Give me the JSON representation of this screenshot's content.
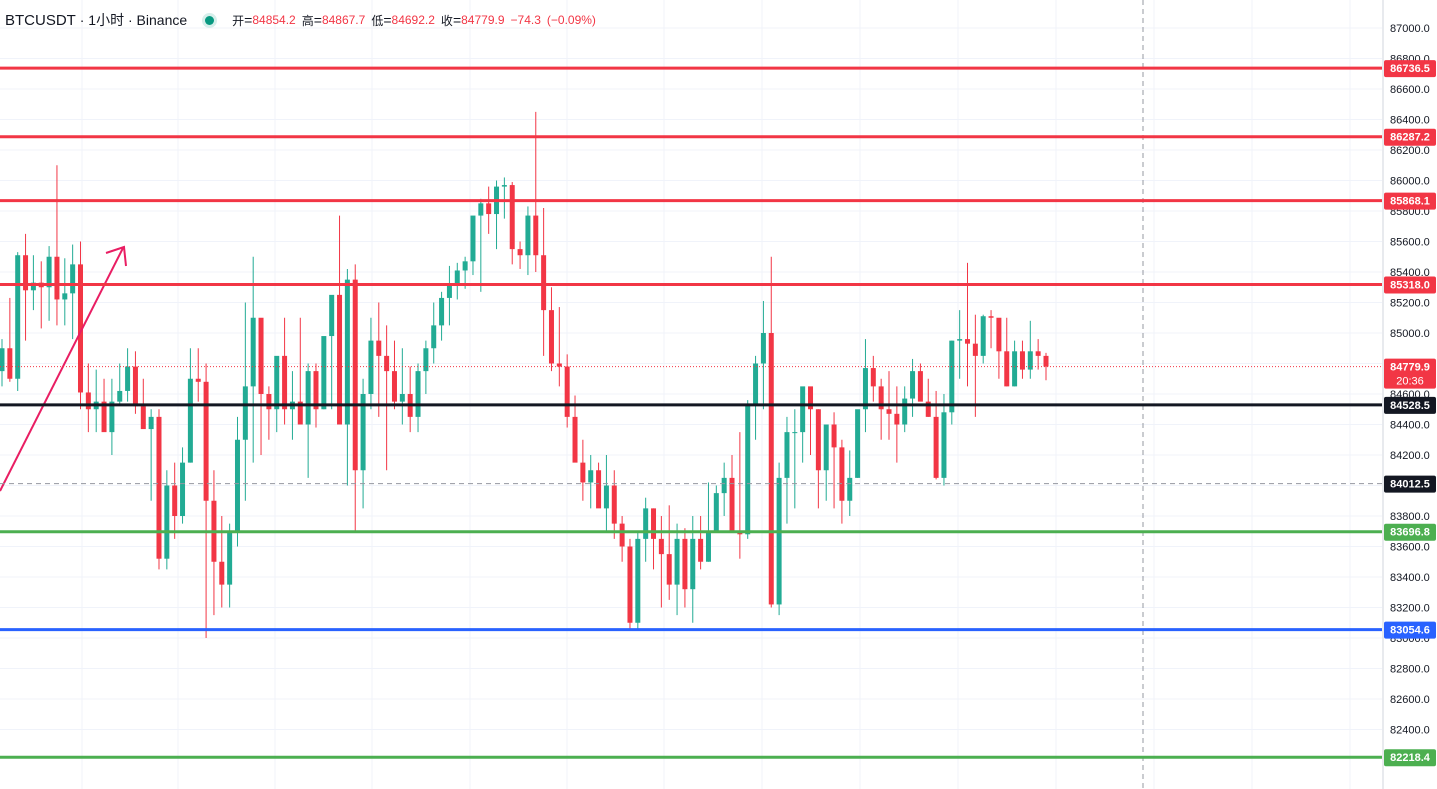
{
  "legend": {
    "symbol": "BTCUSDT",
    "interval": "1小时",
    "exchange": "Binance",
    "open_label": "开",
    "open": "84854.2",
    "high_label": "高",
    "high": "84867.7",
    "low_label": "低",
    "low": "84692.2",
    "close_label": "收",
    "close": "84779.9",
    "change": "−74.3",
    "change_pct": "(−0.09%)"
  },
  "colors": {
    "up": "#22ab94",
    "down": "#f23645",
    "resistance": "#f23645",
    "support": "#4caf50",
    "pivot": "#131722",
    "low_line": "#2962ff",
    "arrow": "#e91e63",
    "grid": "#f0f3fa"
  },
  "chart_data": {
    "type": "candlestick",
    "symbol": "BTCUSDT",
    "timeframe": "1h",
    "ylim": [
      82100,
      87150
    ],
    "y_ticks": [
      82400,
      82600,
      82800,
      83000,
      83200,
      83400,
      83600,
      83800,
      84000,
      84200,
      84400,
      84600,
      84800,
      85000,
      85200,
      85400,
      85600,
      85800,
      86000,
      86200,
      86400,
      86600,
      86800,
      87000
    ],
    "current_price": {
      "value": 84779.9,
      "label": "84779.9",
      "countdown": "20:36"
    },
    "crosshair_price": {
      "value": 84012.5,
      "label": "84012.5"
    },
    "horizontal_lines": [
      {
        "value": 86736.5,
        "label": "86736.5",
        "kind": "resistance"
      },
      {
        "value": 86287.2,
        "label": "86287.2",
        "kind": "resistance"
      },
      {
        "value": 85868.1,
        "label": "85868.1",
        "kind": "resistance"
      },
      {
        "value": 85318.0,
        "label": "85318.0",
        "kind": "resistance"
      },
      {
        "value": 84528.5,
        "label": "84528.5",
        "kind": "pivot"
      },
      {
        "value": 83696.8,
        "label": "83696.8",
        "kind": "support"
      },
      {
        "value": 83054.6,
        "label": "83054.6",
        "kind": "low_line"
      },
      {
        "value": 82218.4,
        "label": "82218.4",
        "kind": "support"
      }
    ],
    "candles_ohlc": [
      [
        84750,
        84960,
        84650,
        84900
      ],
      [
        84900,
        85230,
        84680,
        84700
      ],
      [
        84700,
        85530,
        84620,
        85510
      ],
      [
        85510,
        85650,
        84950,
        85280
      ],
      [
        85280,
        85510,
        85150,
        85330
      ],
      [
        85330,
        85470,
        85030,
        85300
      ],
      [
        85300,
        85570,
        85080,
        85500
      ],
      [
        85500,
        86100,
        85050,
        85220
      ],
      [
        85220,
        85490,
        85050,
        85260
      ],
      [
        85260,
        85580,
        84960,
        85450
      ],
      [
        85450,
        85600,
        84500,
        84610
      ],
      [
        84610,
        84800,
        84350,
        84500
      ],
      [
        84500,
        84760,
        84350,
        84550
      ],
      [
        84550,
        84700,
        84420,
        84350
      ],
      [
        84350,
        84700,
        84200,
        84550
      ],
      [
        84550,
        84800,
        84530,
        84620
      ],
      [
        84620,
        84900,
        84550,
        84780
      ],
      [
        84780,
        84880,
        84470,
        84520
      ],
      [
        84520,
        84700,
        84450,
        84370
      ],
      [
        84370,
        84500,
        83900,
        84450
      ],
      [
        84450,
        84500,
        83450,
        83520
      ],
      [
        83520,
        84100,
        83450,
        84000
      ],
      [
        84000,
        84150,
        83650,
        83800
      ],
      [
        83800,
        84250,
        83750,
        84150
      ],
      [
        84150,
        84900,
        84150,
        84700
      ],
      [
        84700,
        84900,
        84550,
        84680
      ],
      [
        84680,
        84800,
        83000,
        83900
      ],
      [
        83900,
        84100,
        83150,
        83500
      ],
      [
        83500,
        83800,
        83200,
        83350
      ],
      [
        83350,
        83750,
        83200,
        83700
      ],
      [
        83700,
        84450,
        83600,
        84300
      ],
      [
        84300,
        85200,
        83900,
        84650
      ],
      [
        84650,
        85500,
        84150,
        85100
      ],
      [
        85100,
        85050,
        84200,
        84600
      ],
      [
        84600,
        84650,
        84300,
        84500
      ],
      [
        84500,
        84750,
        84350,
        84850
      ],
      [
        84850,
        85100,
        84400,
        84500
      ],
      [
        84500,
        84750,
        84300,
        84550
      ],
      [
        84550,
        85100,
        84500,
        84400
      ],
      [
        84400,
        84800,
        84050,
        84750
      ],
      [
        84750,
        84800,
        84380,
        84500
      ],
      [
        84500,
        84900,
        84500,
        84980
      ],
      [
        84980,
        85000,
        84500,
        85250
      ],
      [
        85250,
        85770,
        84800,
        84400
      ],
      [
        84400,
        85420,
        84000,
        85350
      ],
      [
        85350,
        85450,
        83700,
        84100
      ],
      [
        84100,
        84700,
        83850,
        84600
      ],
      [
        84600,
        85100,
        84500,
        84950
      ],
      [
        84950,
        85200,
        84450,
        84850
      ],
      [
        84850,
        85050,
        84100,
        84750
      ],
      [
        84750,
        84950,
        84500,
        84550
      ],
      [
        84550,
        84900,
        84400,
        84600
      ],
      [
        84600,
        84780,
        84350,
        84450
      ],
      [
        84450,
        84800,
        84350,
        84750
      ],
      [
        84750,
        84950,
        84600,
        84900
      ],
      [
        84900,
        85200,
        84800,
        85050
      ],
      [
        85050,
        85270,
        84950,
        85230
      ],
      [
        85230,
        85440,
        85050,
        85310
      ],
      [
        85310,
        85460,
        85220,
        85410
      ],
      [
        85410,
        85500,
        85290,
        85470
      ],
      [
        85470,
        85720,
        85380,
        85770
      ],
      [
        85770,
        85880,
        85270,
        85850
      ],
      [
        85850,
        85960,
        85650,
        85780
      ],
      [
        85780,
        86000,
        85550,
        85960
      ],
      [
        85960,
        86020,
        85750,
        85970
      ],
      [
        85970,
        85990,
        85450,
        85550
      ],
      [
        85550,
        85600,
        85420,
        85510
      ],
      [
        85510,
        85830,
        85380,
        85770
      ],
      [
        85770,
        86450,
        85400,
        85510
      ],
      [
        85510,
        85820,
        84850,
        85150
      ],
      [
        85150,
        85300,
        84750,
        84800
      ],
      [
        84800,
        85170,
        84650,
        84780
      ],
      [
        84780,
        84860,
        84380,
        84450
      ],
      [
        84450,
        84590,
        84170,
        84150
      ],
      [
        84150,
        84300,
        83900,
        84020
      ],
      [
        84020,
        84200,
        83850,
        84100
      ],
      [
        84100,
        84150,
        83900,
        83850
      ],
      [
        83850,
        84200,
        83700,
        84000
      ],
      [
        84000,
        84100,
        83650,
        83750
      ],
      [
        83750,
        83800,
        83500,
        83600
      ],
      [
        83600,
        83650,
        83050,
        83100
      ],
      [
        83100,
        83700,
        83050,
        83650
      ],
      [
        83650,
        83920,
        83500,
        83850
      ],
      [
        83850,
        83850,
        83450,
        83650
      ],
      [
        83650,
        83800,
        83200,
        83550
      ],
      [
        83550,
        83870,
        83250,
        83350
      ],
      [
        83350,
        83750,
        83150,
        83650
      ],
      [
        83650,
        83720,
        83200,
        83320
      ],
      [
        83320,
        83800,
        83100,
        83650
      ],
      [
        83650,
        83800,
        83450,
        83500
      ],
      [
        83500,
        84020,
        83500,
        83700
      ],
      [
        83700,
        84000,
        83750,
        83950
      ],
      [
        83950,
        84150,
        83800,
        84050
      ],
      [
        84050,
        84200,
        83850,
        83700
      ],
      [
        83700,
        84350,
        83520,
        83680
      ],
      [
        83680,
        84560,
        83650,
        84530
      ],
      [
        84530,
        84850,
        84300,
        84800
      ],
      [
        84800,
        85210,
        84500,
        85000
      ],
      [
        85000,
        85500,
        83200,
        83220
      ],
      [
        83220,
        84150,
        83150,
        84050
      ],
      [
        84050,
        84450,
        83750,
        84350
      ],
      [
        84350,
        84500,
        83850,
        84350
      ],
      [
        84350,
        84550,
        84150,
        84650
      ],
      [
        84650,
        84620,
        84200,
        84500
      ],
      [
        84500,
        84500,
        83850,
        84100
      ],
      [
        84100,
        84350,
        83900,
        84400
      ],
      [
        84400,
        84480,
        83850,
        84250
      ],
      [
        84250,
        84300,
        83750,
        83900
      ],
      [
        83900,
        84230,
        83800,
        84050
      ],
      [
        84050,
        84350,
        84050,
        84500
      ],
      [
        84500,
        84960,
        84350,
        84770
      ],
      [
        84770,
        84850,
        84550,
        84650
      ],
      [
        84650,
        84700,
        84300,
        84500
      ],
      [
        84500,
        84750,
        84300,
        84470
      ],
      [
        84470,
        84650,
        84150,
        84400
      ],
      [
        84400,
        84650,
        84350,
        84570
      ],
      [
        84570,
        84830,
        84450,
        84750
      ],
      [
        84750,
        84800,
        84600,
        84550
      ],
      [
        84550,
        84700,
        84450,
        84450
      ],
      [
        84450,
        84620,
        84040,
        84050
      ],
      [
        84050,
        84600,
        84000,
        84480
      ],
      [
        84480,
        84950,
        84400,
        84950
      ],
      [
        84950,
        85150,
        84700,
        84960
      ],
      [
        84960,
        85460,
        84650,
        84930
      ],
      [
        84930,
        85120,
        84450,
        84850
      ],
      [
        84850,
        85120,
        84800,
        85110
      ],
      [
        85110,
        85150,
        84900,
        85100
      ],
      [
        85100,
        85050,
        84700,
        84880
      ],
      [
        84880,
        85100,
        84650,
        84650
      ],
      [
        84650,
        84950,
        84650,
        84880
      ],
      [
        84880,
        84950,
        84700,
        84760
      ],
      [
        84760,
        85080,
        84700,
        84880
      ],
      [
        84880,
        84960,
        84760,
        84850
      ],
      [
        84850,
        84870,
        84690,
        84780
      ]
    ]
  }
}
